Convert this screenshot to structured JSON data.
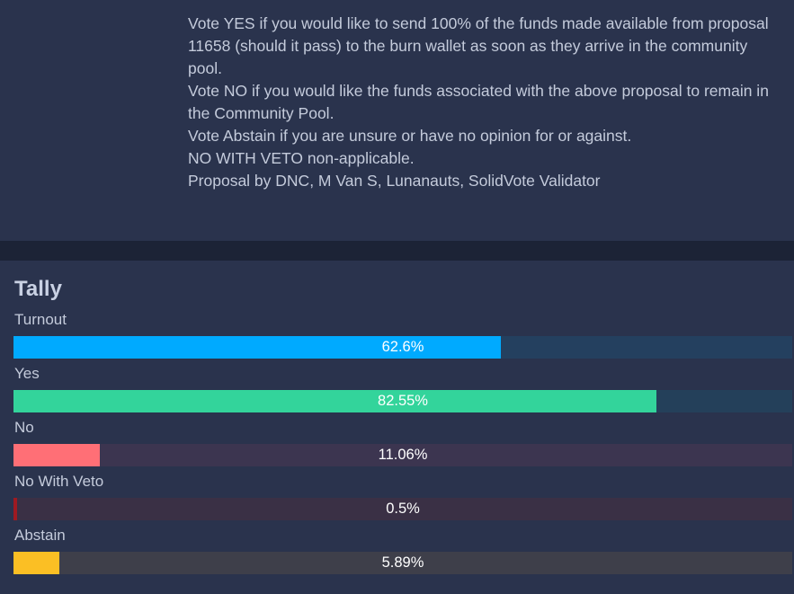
{
  "description": {
    "lines": [
      "Vote YES if you would like to send 100% of the funds made available from proposal 11658 (should it pass) to the burn wallet as soon as they arrive in the community pool.",
      "Vote NO if you would like the funds associated with the above proposal to remain in the Community Pool.",
      "Vote Abstain if you are unsure or have no opinion for or against.",
      "NO WITH VETO non-applicable.",
      "Proposal by DNC, M Van S, Lunanauts, SolidVote Validator"
    ]
  },
  "tally": {
    "title": "Tally",
    "rows": [
      {
        "label": "Turnout",
        "value_text": "62.6%",
        "fill_percent": 62.6,
        "fill_color": "#00aaff",
        "track_color": "#24405f"
      },
      {
        "label": "Yes",
        "value_text": "82.55%",
        "fill_percent": 82.55,
        "fill_color": "#33d49b",
        "track_color": "#24405a"
      },
      {
        "label": "No",
        "value_text": "11.06%",
        "fill_percent": 11.06,
        "fill_color": "#ff6f76",
        "track_color": "#3c3550"
      },
      {
        "label": "No With Veto",
        "value_text": "0.5%",
        "fill_percent": 0.5,
        "fill_color": "#9e1a22",
        "track_color": "#3a3045"
      },
      {
        "label": "Abstain",
        "value_text": "5.89%",
        "fill_percent": 5.89,
        "fill_color": "#fbbf24",
        "track_color": "#3e3f4a"
      }
    ]
  }
}
